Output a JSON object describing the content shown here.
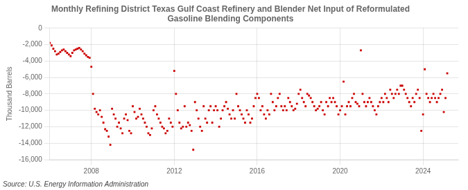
{
  "chart_data": {
    "type": "scatter",
    "title": "Monthly Refining District Texas Gulf Coast Refinery and Blender Net Input of Reformulated\nGasoline Blending Components",
    "ylabel": "Thousand Barrels",
    "annotations": [
      "Source: U.S. Energy Information Administration"
    ],
    "color": "#cc0000",
    "marker": "square",
    "grid": true,
    "xlim": [
      2006.0,
      2025.7
    ],
    "xticks": [
      2008,
      2012,
      2016,
      2020,
      2024
    ],
    "ylim": [
      -16000,
      0
    ],
    "yticks": [
      0,
      {
        "value": -2000,
        "label": "-2,000"
      },
      {
        "value": -4000,
        "label": "-4,000"
      },
      {
        "value": -6000,
        "label": "-6,000"
      },
      {
        "value": -8000,
        "label": "-8,000"
      },
      {
        "value": -10000,
        "label": "-10,000"
      },
      {
        "value": -12000,
        "label": "-12,000"
      },
      {
        "value": -14000,
        "label": "-14,000"
      },
      {
        "value": -16000,
        "label": "-16,000"
      }
    ],
    "x": [
      2006.0,
      2006.083,
      2006.167,
      2006.25,
      2006.333,
      2006.417,
      2006.5,
      2006.583,
      2006.667,
      2006.75,
      2006.833,
      2006.917,
      2007.0,
      2007.083,
      2007.167,
      2007.25,
      2007.333,
      2007.417,
      2007.5,
      2007.583,
      2007.667,
      2007.75,
      2007.833,
      2007.917,
      2008.0,
      2008.083,
      2008.167,
      2008.25,
      2008.333,
      2008.417,
      2008.5,
      2008.583,
      2008.667,
      2008.75,
      2008.833,
      2008.917,
      2009.0,
      2009.083,
      2009.167,
      2009.25,
      2009.333,
      2009.417,
      2009.5,
      2009.583,
      2009.667,
      2009.75,
      2009.833,
      2009.917,
      2010.0,
      2010.083,
      2010.167,
      2010.25,
      2010.333,
      2010.417,
      2010.5,
      2010.583,
      2010.667,
      2010.75,
      2010.833,
      2010.917,
      2011.0,
      2011.083,
      2011.167,
      2011.25,
      2011.333,
      2011.417,
      2011.5,
      2011.583,
      2011.667,
      2011.75,
      2011.833,
      2011.917,
      2012.0,
      2012.083,
      2012.167,
      2012.25,
      2012.333,
      2012.417,
      2012.5,
      2012.583,
      2012.667,
      2012.75,
      2012.833,
      2012.917,
      2013.0,
      2013.083,
      2013.167,
      2013.25,
      2013.333,
      2013.417,
      2013.5,
      2013.583,
      2013.667,
      2013.75,
      2013.833,
      2013.917,
      2014.0,
      2014.083,
      2014.167,
      2014.25,
      2014.333,
      2014.417,
      2014.5,
      2014.583,
      2014.667,
      2014.75,
      2014.833,
      2014.917,
      2015.0,
      2015.083,
      2015.167,
      2015.25,
      2015.333,
      2015.417,
      2015.5,
      2015.583,
      2015.667,
      2015.75,
      2015.833,
      2015.917,
      2016.0,
      2016.083,
      2016.167,
      2016.25,
      2016.333,
      2016.417,
      2016.5,
      2016.583,
      2016.667,
      2016.75,
      2016.833,
      2016.917,
      2017.0,
      2017.083,
      2017.167,
      2017.25,
      2017.333,
      2017.417,
      2017.5,
      2017.583,
      2017.667,
      2017.75,
      2017.833,
      2017.917,
      2018.0,
      2018.083,
      2018.167,
      2018.25,
      2018.333,
      2018.417,
      2018.5,
      2018.583,
      2018.667,
      2018.75,
      2018.833,
      2018.917,
      2019.0,
      2019.083,
      2019.167,
      2019.25,
      2019.333,
      2019.417,
      2019.5,
      2019.583,
      2019.667,
      2019.75,
      2019.833,
      2019.917,
      2020.0,
      2020.083,
      2020.167,
      2020.25,
      2020.333,
      2020.417,
      2020.5,
      2020.583,
      2020.667,
      2020.75,
      2020.833,
      2020.917,
      2021.0,
      2021.083,
      2021.167,
      2021.25,
      2021.333,
      2021.417,
      2021.5,
      2021.583,
      2021.667,
      2021.75,
      2021.833,
      2021.917,
      2022.0,
      2022.083,
      2022.167,
      2022.25,
      2022.333,
      2022.417,
      2022.5,
      2022.583,
      2022.667,
      2022.75,
      2022.833,
      2022.917,
      2023.0,
      2023.083,
      2023.167,
      2023.25,
      2023.333,
      2023.417,
      2023.5,
      2023.583,
      2023.667,
      2023.75,
      2023.833,
      2023.917,
      2024.0,
      2024.083,
      2024.167,
      2024.25,
      2024.333,
      2024.417,
      2024.5,
      2024.583,
      2024.667,
      2024.75,
      2024.833,
      2024.917,
      2025.0,
      2025.083,
      2025.167
    ],
    "values": [
      -1800,
      -2100,
      -2500,
      -2800,
      -3200,
      -3100,
      -2900,
      -2700,
      -2600,
      -2800,
      -3000,
      -3200,
      -3400,
      -3000,
      -2700,
      -2600,
      -2500,
      -2400,
      -2600,
      -2800,
      -3100,
      -3300,
      -3500,
      -3600,
      -4700,
      -8000,
      -9800,
      -10200,
      -10500,
      -10000,
      -10800,
      -11500,
      -12300,
      -12500,
      -13200,
      -14200,
      -9800,
      -10500,
      -11000,
      -12000,
      -11500,
      -12200,
      -12800,
      -11000,
      -10500,
      -11200,
      -12500,
      -12800,
      -9500,
      -10200,
      -11000,
      -10800,
      -9800,
      -10500,
      -11000,
      -11500,
      -12000,
      -12800,
      -13000,
      -12200,
      -10000,
      -9500,
      -10500,
      -11000,
      -11500,
      -12000,
      -12200,
      -12800,
      -12500,
      -11000,
      -11500,
      -12000,
      -5200,
      -8000,
      -10000,
      -11500,
      -12200,
      -12000,
      -9500,
      -12000,
      -11500,
      -11800,
      -12500,
      -14800,
      -9000,
      -10000,
      -11000,
      -12000,
      -12500,
      -9500,
      -11000,
      -11500,
      -10000,
      -9500,
      -11500,
      -10000,
      -9500,
      -10000,
      -12000,
      -11000,
      -10000,
      -9500,
      -9000,
      -9800,
      -10500,
      -11000,
      -10000,
      -11000,
      -8000,
      -9500,
      -10000,
      -10500,
      -11000,
      -11500,
      -10000,
      -10500,
      -11500,
      -11000,
      -9500,
      -8500,
      -8000,
      -8500,
      -10000,
      -9500,
      -10500,
      -11000,
      -10000,
      -10500,
      -8000,
      -9000,
      -10000,
      -9500,
      -8500,
      -8000,
      -9500,
      -10000,
      -9500,
      -10000,
      -8500,
      -9000,
      -9500,
      -10000,
      -9800,
      -9200,
      -8000,
      -7500,
      -8500,
      -9000,
      -9500,
      -8000,
      -8200,
      -8500,
      -9000,
      -9500,
      -10000,
      -9800,
      -9500,
      -9000,
      -10000,
      -10500,
      -9000,
      -9500,
      -8500,
      -9000,
      -8500,
      -9000,
      -9500,
      -10500,
      -10000,
      -9500,
      -6500,
      -10500,
      -9500,
      -9000,
      -9500,
      -8500,
      -8000,
      -9000,
      -9200,
      -9500,
      -2700,
      -8000,
      -9000,
      -9500,
      -9000,
      -8500,
      -9000,
      -9500,
      -10000,
      -10500,
      -9500,
      -9000,
      -8500,
      -9000,
      -8000,
      -8500,
      -9000,
      -7500,
      -8000,
      -8500,
      -8000,
      -7500,
      -8000,
      -7000,
      -7000,
      -7500,
      -8000,
      -8500,
      -9000,
      -9500,
      -8500,
      -9000,
      -8000,
      -7500,
      -8500,
      -12500,
      -10500,
      -5000,
      -8000,
      -8500,
      -9000,
      -8500,
      -8000,
      -8500,
      -9000,
      -8500,
      -8000,
      -7500,
      -10200,
      -8500,
      -5500
    ]
  }
}
